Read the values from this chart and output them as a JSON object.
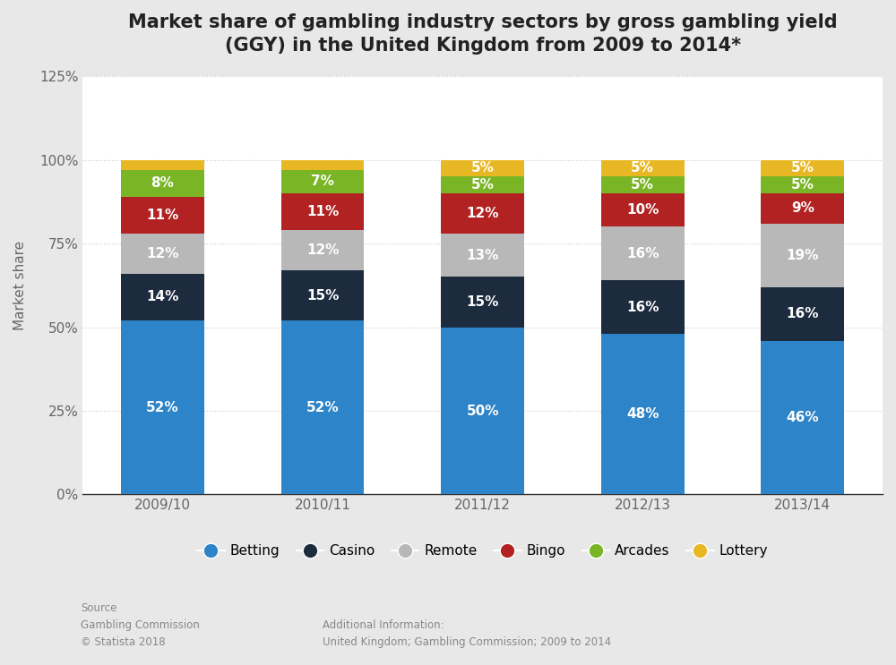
{
  "title": "Market share of gambling industry sectors by gross gambling yield\n(GGY) in the United Kingdom from 2009 to 2014*",
  "ylabel": "Market share",
  "categories": [
    "2009/10",
    "2010/11",
    "2011/12",
    "2012/13",
    "2013/14"
  ],
  "series": {
    "Betting": [
      52,
      52,
      50,
      48,
      46
    ],
    "Casino": [
      14,
      15,
      15,
      16,
      16
    ],
    "Remote": [
      12,
      12,
      13,
      16,
      19
    ],
    "Bingo": [
      11,
      11,
      12,
      10,
      9
    ],
    "Arcades": [
      8,
      7,
      5,
      5,
      5
    ],
    "Lottery": [
      3,
      3,
      5,
      5,
      5
    ]
  },
  "colors": {
    "Betting": "#2e84c8",
    "Casino": "#1c2b3e",
    "Remote": "#b8b8b8",
    "Bingo": "#b22222",
    "Arcades": "#7ab526",
    "Lottery": "#e8b824"
  },
  "order": [
    "Betting",
    "Casino",
    "Remote",
    "Bingo",
    "Arcades",
    "Lottery"
  ],
  "ylim": [
    0,
    125
  ],
  "yticks": [
    0,
    25,
    50,
    75,
    100,
    125
  ],
  "ytick_labels": [
    "0%",
    "25%",
    "50%",
    "75%",
    "100%",
    "125%"
  ],
  "figure_background": "#e8e8e8",
  "plot_background": "#ffffff",
  "title_fontsize": 15,
  "label_fontsize": 11,
  "tick_fontsize": 11,
  "legend_fontsize": 11,
  "bar_label_fontsize": 11,
  "source_text": "Source\nGambling Commission\n© Statista 2018",
  "additional_info": "Additional Information:\nUnited Kingdom; Gambling Commission; 2009 to 2014",
  "bar_width": 0.52
}
